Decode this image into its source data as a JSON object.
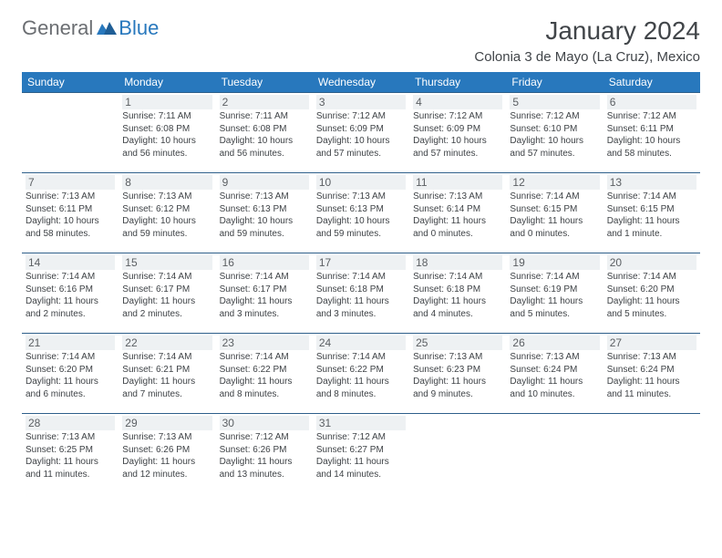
{
  "logo": {
    "general": "General",
    "blue": "Blue"
  },
  "title": "January 2024",
  "location": "Colonia 3 de Mayo (La Cruz), Mexico",
  "colors": {
    "header_bg": "#2878bd",
    "header_text": "#ffffff",
    "cell_border": "#2e5f8a",
    "daynum_bg": "#eef1f3",
    "daynum_text": "#5b5f63",
    "body_text": "#3e4246",
    "title_text": "#414549",
    "logo_gray": "#6b6e72",
    "logo_blue": "#2878bd"
  },
  "weekdays": [
    "Sunday",
    "Monday",
    "Tuesday",
    "Wednesday",
    "Thursday",
    "Friday",
    "Saturday"
  ],
  "weeks": [
    [
      null,
      {
        "n": "1",
        "sr": "Sunrise: 7:11 AM",
        "ss": "Sunset: 6:08 PM",
        "dl": "Daylight: 10 hours and 56 minutes."
      },
      {
        "n": "2",
        "sr": "Sunrise: 7:11 AM",
        "ss": "Sunset: 6:08 PM",
        "dl": "Daylight: 10 hours and 56 minutes."
      },
      {
        "n": "3",
        "sr": "Sunrise: 7:12 AM",
        "ss": "Sunset: 6:09 PM",
        "dl": "Daylight: 10 hours and 57 minutes."
      },
      {
        "n": "4",
        "sr": "Sunrise: 7:12 AM",
        "ss": "Sunset: 6:09 PM",
        "dl": "Daylight: 10 hours and 57 minutes."
      },
      {
        "n": "5",
        "sr": "Sunrise: 7:12 AM",
        "ss": "Sunset: 6:10 PM",
        "dl": "Daylight: 10 hours and 57 minutes."
      },
      {
        "n": "6",
        "sr": "Sunrise: 7:12 AM",
        "ss": "Sunset: 6:11 PM",
        "dl": "Daylight: 10 hours and 58 minutes."
      }
    ],
    [
      {
        "n": "7",
        "sr": "Sunrise: 7:13 AM",
        "ss": "Sunset: 6:11 PM",
        "dl": "Daylight: 10 hours and 58 minutes."
      },
      {
        "n": "8",
        "sr": "Sunrise: 7:13 AM",
        "ss": "Sunset: 6:12 PM",
        "dl": "Daylight: 10 hours and 59 minutes."
      },
      {
        "n": "9",
        "sr": "Sunrise: 7:13 AM",
        "ss": "Sunset: 6:13 PM",
        "dl": "Daylight: 10 hours and 59 minutes."
      },
      {
        "n": "10",
        "sr": "Sunrise: 7:13 AM",
        "ss": "Sunset: 6:13 PM",
        "dl": "Daylight: 10 hours and 59 minutes."
      },
      {
        "n": "11",
        "sr": "Sunrise: 7:13 AM",
        "ss": "Sunset: 6:14 PM",
        "dl": "Daylight: 11 hours and 0 minutes."
      },
      {
        "n": "12",
        "sr": "Sunrise: 7:14 AM",
        "ss": "Sunset: 6:15 PM",
        "dl": "Daylight: 11 hours and 0 minutes."
      },
      {
        "n": "13",
        "sr": "Sunrise: 7:14 AM",
        "ss": "Sunset: 6:15 PM",
        "dl": "Daylight: 11 hours and 1 minute."
      }
    ],
    [
      {
        "n": "14",
        "sr": "Sunrise: 7:14 AM",
        "ss": "Sunset: 6:16 PM",
        "dl": "Daylight: 11 hours and 2 minutes."
      },
      {
        "n": "15",
        "sr": "Sunrise: 7:14 AM",
        "ss": "Sunset: 6:17 PM",
        "dl": "Daylight: 11 hours and 2 minutes."
      },
      {
        "n": "16",
        "sr": "Sunrise: 7:14 AM",
        "ss": "Sunset: 6:17 PM",
        "dl": "Daylight: 11 hours and 3 minutes."
      },
      {
        "n": "17",
        "sr": "Sunrise: 7:14 AM",
        "ss": "Sunset: 6:18 PM",
        "dl": "Daylight: 11 hours and 3 minutes."
      },
      {
        "n": "18",
        "sr": "Sunrise: 7:14 AM",
        "ss": "Sunset: 6:18 PM",
        "dl": "Daylight: 11 hours and 4 minutes."
      },
      {
        "n": "19",
        "sr": "Sunrise: 7:14 AM",
        "ss": "Sunset: 6:19 PM",
        "dl": "Daylight: 11 hours and 5 minutes."
      },
      {
        "n": "20",
        "sr": "Sunrise: 7:14 AM",
        "ss": "Sunset: 6:20 PM",
        "dl": "Daylight: 11 hours and 5 minutes."
      }
    ],
    [
      {
        "n": "21",
        "sr": "Sunrise: 7:14 AM",
        "ss": "Sunset: 6:20 PM",
        "dl": "Daylight: 11 hours and 6 minutes."
      },
      {
        "n": "22",
        "sr": "Sunrise: 7:14 AM",
        "ss": "Sunset: 6:21 PM",
        "dl": "Daylight: 11 hours and 7 minutes."
      },
      {
        "n": "23",
        "sr": "Sunrise: 7:14 AM",
        "ss": "Sunset: 6:22 PM",
        "dl": "Daylight: 11 hours and 8 minutes."
      },
      {
        "n": "24",
        "sr": "Sunrise: 7:14 AM",
        "ss": "Sunset: 6:22 PM",
        "dl": "Daylight: 11 hours and 8 minutes."
      },
      {
        "n": "25",
        "sr": "Sunrise: 7:13 AM",
        "ss": "Sunset: 6:23 PM",
        "dl": "Daylight: 11 hours and 9 minutes."
      },
      {
        "n": "26",
        "sr": "Sunrise: 7:13 AM",
        "ss": "Sunset: 6:24 PM",
        "dl": "Daylight: 11 hours and 10 minutes."
      },
      {
        "n": "27",
        "sr": "Sunrise: 7:13 AM",
        "ss": "Sunset: 6:24 PM",
        "dl": "Daylight: 11 hours and 11 minutes."
      }
    ],
    [
      {
        "n": "28",
        "sr": "Sunrise: 7:13 AM",
        "ss": "Sunset: 6:25 PM",
        "dl": "Daylight: 11 hours and 11 minutes."
      },
      {
        "n": "29",
        "sr": "Sunrise: 7:13 AM",
        "ss": "Sunset: 6:26 PM",
        "dl": "Daylight: 11 hours and 12 minutes."
      },
      {
        "n": "30",
        "sr": "Sunrise: 7:12 AM",
        "ss": "Sunset: 6:26 PM",
        "dl": "Daylight: 11 hours and 13 minutes."
      },
      {
        "n": "31",
        "sr": "Sunrise: 7:12 AM",
        "ss": "Sunset: 6:27 PM",
        "dl": "Daylight: 11 hours and 14 minutes."
      },
      null,
      null,
      null
    ]
  ]
}
